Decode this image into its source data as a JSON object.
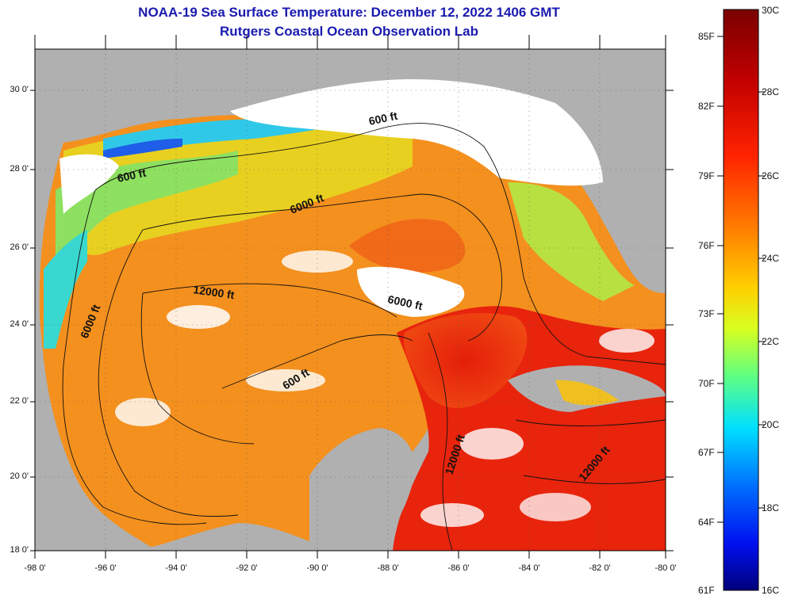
{
  "header": {
    "title": "NOAA-19 Sea Surface Temperature:  December 12, 2022 1406 GMT",
    "subtitle": "Rutgers Coastal Ocean Observation Lab"
  },
  "axes": {
    "latitude_labels": [
      "30 0'",
      "28 0'",
      "26 0'",
      "24 0'",
      "22 0'",
      "20 0'",
      "18 0'"
    ],
    "longitude_labels": [
      "-98 0'",
      "-96 0'",
      "-94 0'",
      "-92 0'",
      "-90 0'",
      "-88 0'",
      "-86 0'",
      "-84 0'",
      "-82 0'",
      "-80 0'"
    ]
  },
  "depth_contour_labels": [
    "600 ft",
    "600 ft",
    "600 ft",
    "6000 ft",
    "6000 ft",
    "6000 ft",
    "12000 ft",
    "12000 ft",
    "12000 ft"
  ],
  "colorbar": {
    "fahrenheit_labels": [
      "85F",
      "82F",
      "79F",
      "76F",
      "73F",
      "70F",
      "67F",
      "64F",
      "61F"
    ],
    "celsius_labels": [
      "30C",
      "28C",
      "26C",
      "24C",
      "22C",
      "20C",
      "18C",
      "16C"
    ],
    "gradient_colors": [
      "#7a0000",
      "#c80000",
      "#ff2a00",
      "#ff8000",
      "#ffd000",
      "#e6ff00",
      "#7fff60",
      "#00e0ff",
      "#0080ff",
      "#0020ff",
      "#00007a"
    ]
  },
  "legend_colors": {
    "land": "#b0b0b0",
    "cloud": "#ffffff",
    "border": "#000000"
  }
}
